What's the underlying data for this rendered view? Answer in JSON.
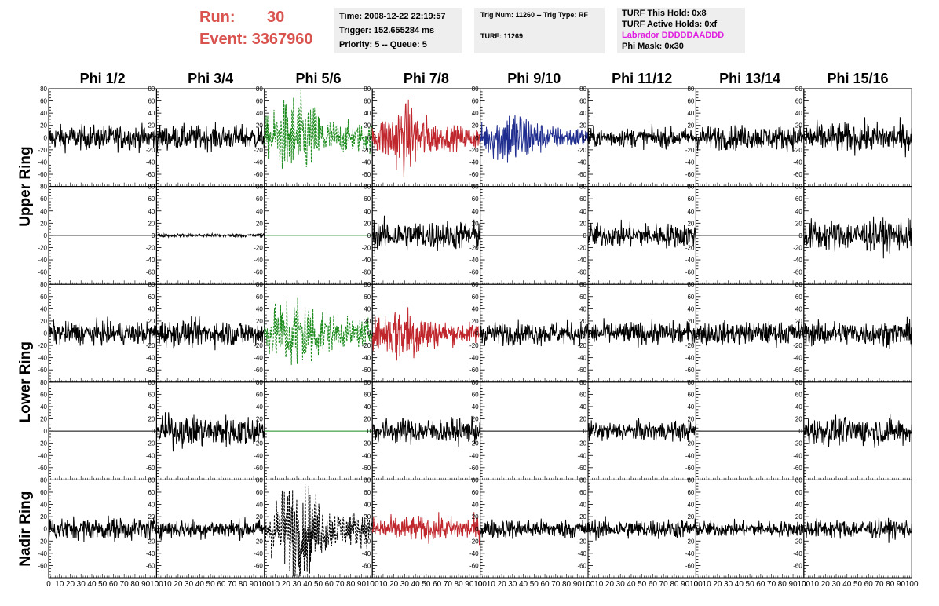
{
  "header": {
    "run_label": "Run:",
    "run_value": "30",
    "event_label": "Event:",
    "event_value": "3367960"
  },
  "info_time": {
    "time": "Time: 2008-12-22 22:19:57",
    "trigger": "Trigger: 152.655284 ms",
    "priority": "Priority: 5 -- Queue: 5"
  },
  "info_trig": {
    "trig": "Trig Num: 11260 -- Trig Type: RF",
    "turf": "TURF: 11269"
  },
  "info_turf": {
    "hold": "TURF This Hold: 0x8",
    "active": "TURF Active Holds: 0xf",
    "labrador": "Labrador DDDDDAADDD",
    "phimask": "Phi Mask: 0x30",
    "labrador_color": "#e020e0"
  },
  "chart_data": {
    "type": "line",
    "columns": [
      "Phi 1/2",
      "Phi 3/4",
      "Phi 5/6",
      "Phi 7/8",
      "Phi 9/10",
      "Phi 11/12",
      "Phi 13/14",
      "Phi 15/16"
    ],
    "ring_labels": [
      "Upper Ring",
      "Lower Ring",
      "Nadir Ring"
    ],
    "xlim": [
      0,
      100
    ],
    "ylim": [
      -80,
      80
    ],
    "x_ticks": [
      0,
      10,
      20,
      30,
      40,
      50,
      60,
      70,
      80,
      90,
      100
    ],
    "y_ticks": [
      -60,
      -40,
      -20,
      0,
      20,
      40,
      60,
      80
    ],
    "colors": {
      "normal": "#000000",
      "green": "#1a8a1a",
      "red": "#c0272d",
      "blue": "#1f2d8f"
    },
    "panels": [
      [
        {
          "amp": 14,
          "color": "normal"
        },
        {
          "amp": 14,
          "color": "normal"
        },
        {
          "amp": 28,
          "color": "green",
          "dashed": true,
          "burst": true
        },
        {
          "amp": 22,
          "color": "red",
          "burst": true
        },
        {
          "amp": 20,
          "color": "blue",
          "burst": true
        },
        {
          "amp": 11,
          "color": "normal"
        },
        {
          "amp": 14,
          "color": "normal"
        },
        {
          "amp": 17,
          "color": "normal"
        }
      ],
      [
        {
          "amp": 0,
          "color": "normal",
          "flat": true
        },
        {
          "amp": 2,
          "color": "normal"
        },
        {
          "amp": 0,
          "color": "green",
          "flat": true
        },
        {
          "amp": 17,
          "color": "normal"
        },
        {
          "amp": 0,
          "color": "normal",
          "flat": true
        },
        {
          "amp": 14,
          "color": "normal"
        },
        {
          "amp": 0,
          "color": "normal",
          "flat": true
        },
        {
          "amp": 18,
          "color": "normal"
        }
      ],
      [
        {
          "amp": 13,
          "color": "normal"
        },
        {
          "amp": 15,
          "color": "normal"
        },
        {
          "amp": 27,
          "color": "green",
          "dashed": true,
          "burst": true
        },
        {
          "amp": 20,
          "color": "red",
          "burst": true
        },
        {
          "amp": 13,
          "color": "normal"
        },
        {
          "amp": 13,
          "color": "normal"
        },
        {
          "amp": 13,
          "color": "normal"
        },
        {
          "amp": 14,
          "color": "normal"
        }
      ],
      [
        {
          "amp": 0,
          "color": "normal",
          "flat": true
        },
        {
          "amp": 18,
          "color": "normal"
        },
        {
          "amp": 0,
          "color": "green",
          "flat": true
        },
        {
          "amp": 14,
          "color": "normal"
        },
        {
          "amp": 0,
          "color": "normal",
          "flat": true
        },
        {
          "amp": 11,
          "color": "normal"
        },
        {
          "amp": 0,
          "color": "normal",
          "flat": true
        },
        {
          "amp": 16,
          "color": "normal"
        }
      ],
      [
        {
          "amp": 13,
          "color": "normal"
        },
        {
          "amp": 11,
          "color": "normal"
        },
        {
          "amp": 32,
          "color": "normal",
          "dashed": true,
          "burst": true
        },
        {
          "amp": 14,
          "color": "red"
        },
        {
          "amp": 11,
          "color": "normal"
        },
        {
          "amp": 11,
          "color": "normal"
        },
        {
          "amp": 9,
          "color": "normal"
        },
        {
          "amp": 11,
          "color": "normal"
        }
      ]
    ]
  }
}
